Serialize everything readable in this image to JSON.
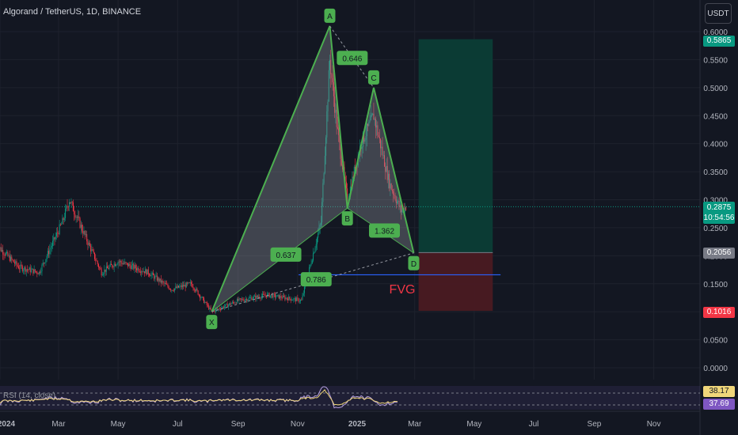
{
  "header": {
    "symbol_title": "Algorand / TetherUS, 1D, BINANCE",
    "currency": "USDT"
  },
  "rsi_label": "RSI (14, close)",
  "price_tags": {
    "target": "0.5865",
    "current_price": "0.2875",
    "countdown": "10:54:56",
    "entry": "0.2056",
    "stop": "0.1016",
    "rsi_a": "38.17",
    "rsi_b": "37.69"
  },
  "colors": {
    "background": "#131722",
    "pattern_line": "#4caf50",
    "pattern_fill": "#9598a1",
    "label_bg": "#4caf50",
    "profit_zone": "#0b3d36",
    "loss_zone": "#4a1a22",
    "fvg_line": "#2962ff",
    "fvg_text": "#f23645",
    "candle_up": "#089981",
    "candle_down": "#f23645"
  },
  "chart_data": {
    "type": "candlestick",
    "y_axis": {
      "ylim": [
        -0.02,
        0.61
      ],
      "ticks": [
        "0.0000",
        "0.0500",
        "0.1000",
        "0.1500",
        "0.2000",
        "0.2500",
        "0.3000",
        "0.3500",
        "0.4000",
        "0.4500",
        "0.5000",
        "0.5500",
        "0.6000"
      ],
      "tick_values": [
        0.0,
        0.05,
        0.1,
        0.15,
        0.2,
        0.25,
        0.3,
        0.35,
        0.4,
        0.45,
        0.5,
        0.55,
        0.6
      ]
    },
    "x_axis": {
      "labels": [
        "2024",
        "Mar",
        "May",
        "Jul",
        "Sep",
        "Nov",
        "2025",
        "Mar",
        "May",
        "Jul",
        "Sep",
        "Nov"
      ],
      "dates": [
        "2024-01-01",
        "2024-03-01",
        "2024-05-01",
        "2024-07-01",
        "2024-09-01",
        "2024-11-01",
        "2025-01-01",
        "2025-03-01",
        "2025-05-01",
        "2025-07-01",
        "2025-09-01",
        "2025-11-01"
      ]
    },
    "harmonic_pattern": {
      "points": [
        {
          "label": "X",
          "date": "2024-08-05",
          "price": 0.1
        },
        {
          "label": "A",
          "date": "2024-12-04",
          "price": 0.61
        },
        {
          "label": "B",
          "date": "2024-12-22",
          "price": 0.285
        },
        {
          "label": "C",
          "date": "2025-01-18",
          "price": 0.5
        },
        {
          "label": "D",
          "date": "2025-02-28",
          "price": 0.205
        }
      ],
      "ratios": [
        {
          "label": "0.646",
          "date": "2024-12-27",
          "price": 0.553
        },
        {
          "label": "0.637",
          "date": "2024-10-20",
          "price": 0.202
        },
        {
          "label": "0.786",
          "date": "2024-11-20",
          "price": 0.158
        },
        {
          "label": "1.362",
          "date": "2025-01-29",
          "price": 0.245
        }
      ]
    },
    "position": {
      "start": "2025-03-05",
      "end": "2025-05-20",
      "target": 0.5865,
      "entry": 0.2056,
      "stop": 0.1016
    },
    "fvg": {
      "label": "FVG",
      "price": 0.166,
      "start": "2024-11-02",
      "end": "2025-05-28"
    },
    "current_price": 0.2875,
    "rsi": {
      "values": [
        38.17,
        37.69
      ]
    }
  }
}
